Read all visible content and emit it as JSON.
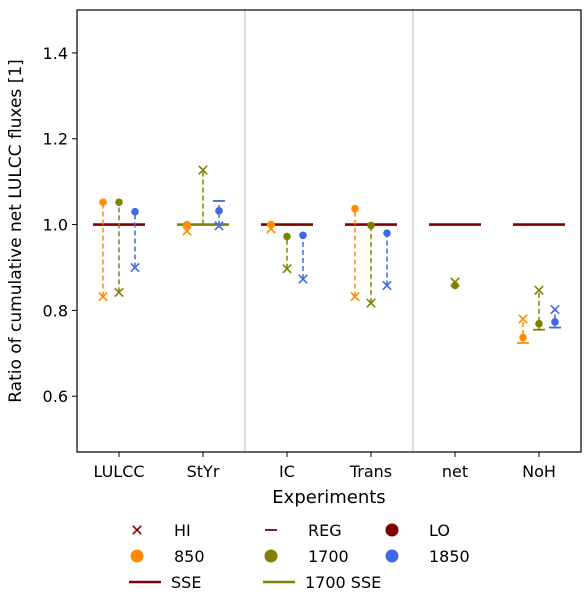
{
  "chart_data": {
    "type": "scatter",
    "title": "",
    "xlabel": "Experiments",
    "ylabel": "Ratio of cumulative net LULCC fluxes [1]",
    "ylim": [
      0.47,
      1.5
    ],
    "yticks": [
      0.6,
      0.8,
      1.0,
      1.2,
      1.4
    ],
    "ytick_labels": [
      "0.6",
      "0.8",
      "1.0",
      "1.2",
      "1.4"
    ],
    "categories": [
      "LULCC",
      "StYr",
      "IC",
      "Trans",
      "net",
      "NoH"
    ],
    "separators_after": [
      "StYr",
      "Trans"
    ],
    "grid": false,
    "colors": {
      "850": "#ff8c00",
      "1700": "#808000",
      "1850": "#4169e1",
      "SSE": "#800000",
      "1700 SSE": "#808000",
      "marker_key": "#800000",
      "separator": "#bbbbbb"
    },
    "series": [
      {
        "name": "850",
        "color_key": "850",
        "LO": [
          1.052,
          1.0,
          1.0,
          1.037,
          null,
          0.737
        ],
        "HI": [
          0.832,
          0.985,
          0.99,
          0.832,
          null,
          0.78
        ],
        "REG": [
          null,
          null,
          null,
          null,
          null,
          0.724
        ]
      },
      {
        "name": "1700",
        "color_key": "1700",
        "LO": [
          1.052,
          null,
          0.972,
          0.998,
          0.858,
          0.769
        ],
        "HI": [
          0.842,
          1.127,
          0.897,
          0.817,
          0.866,
          0.847
        ],
        "REG": [
          null,
          1.0,
          null,
          null,
          null,
          0.755
        ]
      },
      {
        "name": "1850",
        "color_key": "1850",
        "LO": [
          1.03,
          1.032,
          0.975,
          0.98,
          null,
          0.773
        ],
        "HI": [
          0.9,
          0.997,
          0.873,
          0.858,
          null,
          0.802
        ],
        "REG": [
          null,
          1.055,
          null,
          null,
          null,
          0.76
        ]
      }
    ],
    "reference_lines": {
      "SSE": [
        1.0,
        null,
        1.0,
        1.0,
        1.0,
        1.0
      ],
      "1700 SSE": [
        null,
        1.0,
        null,
        null,
        null,
        null
      ]
    },
    "legend": {
      "placement": "below",
      "entries": [
        {
          "label": "HI",
          "kind": "marker-x",
          "color_key": "marker_key"
        },
        {
          "label": "850",
          "kind": "marker-dot",
          "color_key": "850"
        },
        {
          "label": "SSE",
          "kind": "line",
          "color_key": "SSE"
        },
        {
          "label": "REG",
          "kind": "marker-dash",
          "color_key": "marker_key"
        },
        {
          "label": "1700",
          "kind": "marker-dot",
          "color_key": "1700"
        },
        {
          "label": "1700 SSE",
          "kind": "line",
          "color_key": "1700 SSE"
        },
        {
          "label": "LO",
          "kind": "marker-dot",
          "color_key": "marker_key"
        },
        {
          "label": "1850",
          "kind": "marker-dot",
          "color_key": "1850"
        }
      ]
    }
  }
}
